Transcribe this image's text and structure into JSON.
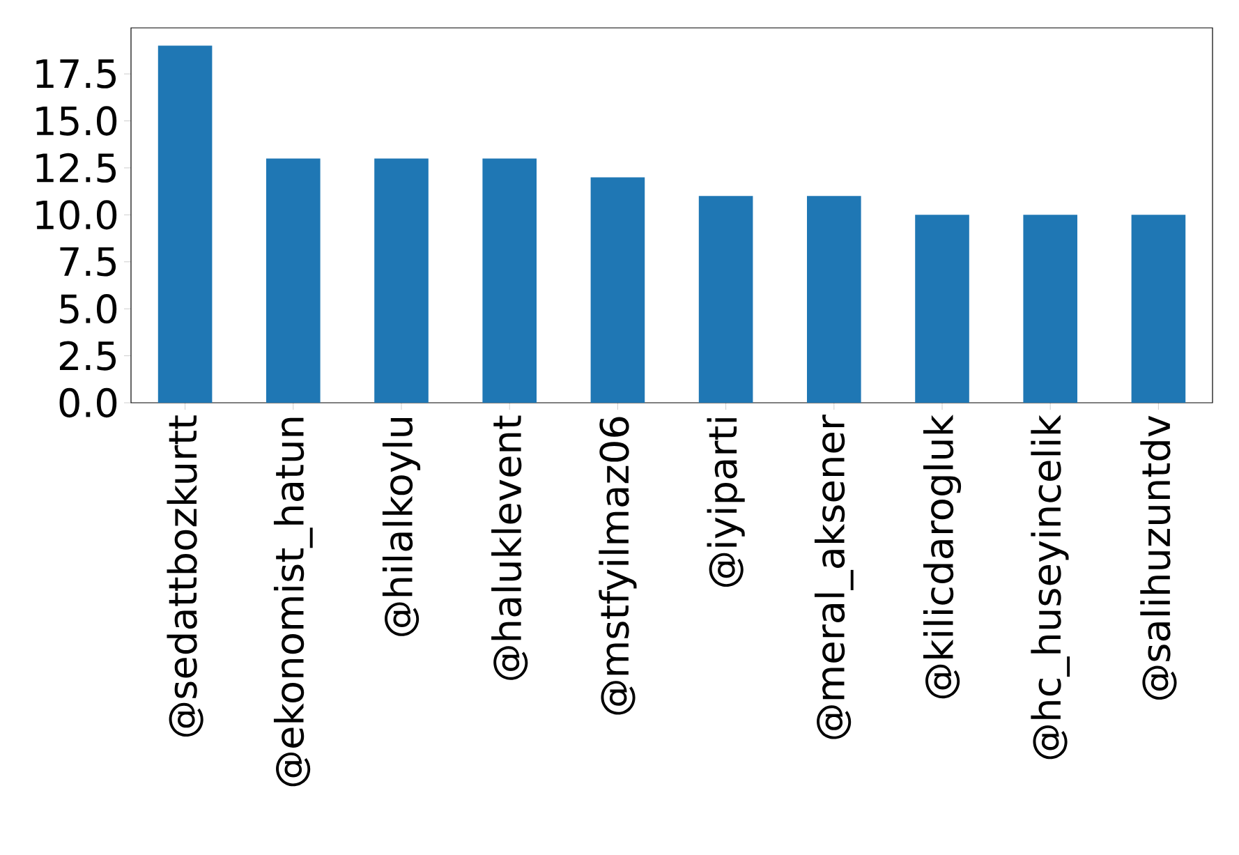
{
  "chart_data": {
    "type": "bar",
    "categories": [
      "@sedattbozkurtt",
      "@ekonomist_hatun",
      "@hilalkoylu",
      "@haluklevent",
      "@mstfyilmaz06",
      "@iyiparti",
      "@meral_aksener",
      "@kilicdarogluk",
      "@hc_huseyincelik",
      "@salihuzuntdv"
    ],
    "values": [
      19,
      13,
      13,
      13,
      12,
      11,
      11,
      10,
      10,
      10
    ],
    "color": "#1f77b4",
    "ylim": [
      0,
      19.95
    ],
    "yticks": [
      {
        "value": 0,
        "label": "0.0"
      },
      2.5,
      {
        "value": 5,
        "label": "5.0"
      },
      7.5,
      {
        "value": 10,
        "label": "10.0"
      },
      12.5,
      {
        "value": 15,
        "label": "15.0"
      },
      17.5
    ],
    "grid": false
  }
}
